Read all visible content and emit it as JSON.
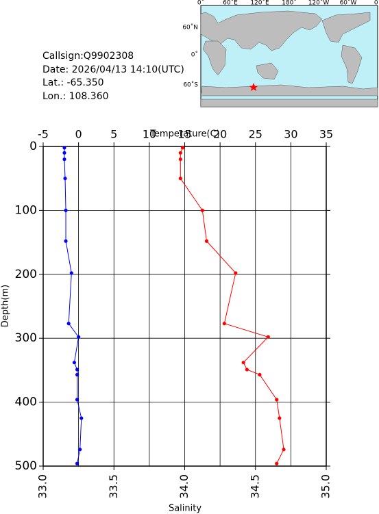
{
  "info": {
    "callsign": "Callsign:Q9902308",
    "date": "Date:  2026/04/13 14:10(UTC)",
    "lat": "Lat.:  -65.350",
    "lon": "Lon.:  108.360"
  },
  "map": {
    "lon_labels": [
      "0˚",
      "60˚E",
      "120˚E",
      "180˚",
      "120˚W",
      "60˚W",
      "0˚"
    ],
    "lat_labels": [
      "60˚N",
      "0˚",
      "60˚S"
    ]
  },
  "chart_data": {
    "type": "profile",
    "xlabel": "Salinity",
    "x2label": "Temperature(C)",
    "ylabel": "Depth(m)",
    "depth": [
      2,
      10,
      20,
      50,
      100,
      148,
      198,
      277,
      298,
      338,
      349,
      357,
      396,
      425,
      474,
      496
    ],
    "series": [
      {
        "color": "#0000ff",
        "axis": "x",
        "values": [
          33.15,
          33.15,
          33.15,
          33.155,
          33.16,
          33.16,
          33.2,
          33.18,
          33.25,
          33.22,
          33.24,
          33.24,
          33.24,
          33.27,
          33.26,
          33.24
        ]
      },
      {
        "color": "#ff0000",
        "axis": "x2",
        "values": [
          14.7,
          14.4,
          14.4,
          14.4,
          17.5,
          18.1,
          22.2,
          20.6,
          26.8,
          23.3,
          23.8,
          25.6,
          28.0,
          28.4,
          29.0,
          28.0
        ]
      }
    ],
    "ylim": [
      0,
      500
    ],
    "yticks": [
      0,
      100,
      200,
      300,
      400,
      500
    ],
    "xlim": [
      33,
      35
    ],
    "xticks": [
      {
        "value": 33,
        "label": "33.0"
      },
      {
        "value": 33.5,
        "label": "33.5"
      },
      {
        "value": 34,
        "label": "34.0"
      },
      {
        "value": 34.5,
        "label": "34.5"
      },
      {
        "value": 35,
        "label": "35.0"
      }
    ],
    "x2lim": [
      -5,
      35
    ],
    "x2ticks": [
      -5,
      0,
      5,
      10,
      15,
      20,
      25,
      30,
      35
    ],
    "grid": true
  }
}
